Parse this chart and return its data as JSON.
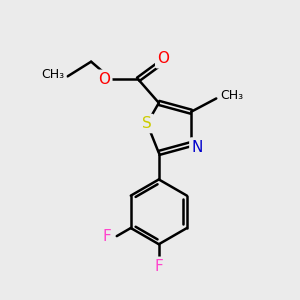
{
  "bg_color": "#ebebeb",
  "bond_color": "black",
  "bond_width": 1.8,
  "atom_colors": {
    "O": "#ff0000",
    "N": "#0000cc",
    "S": "#cccc00",
    "F": "#ff44cc",
    "C": "black"
  },
  "font_size": 10,
  "font_size_label": 11
}
